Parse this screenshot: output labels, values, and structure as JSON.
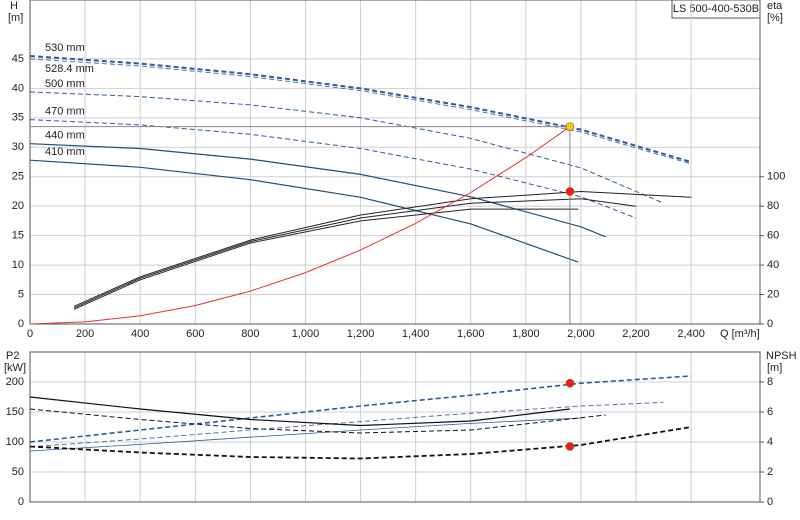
{
  "chart_data": [
    {
      "type": "line",
      "title": "LS 500-400-530B",
      "x_label": "Q [m³/h]",
      "y_label": "H",
      "y_unit": "[m]",
      "y2_label": "eta",
      "y2_unit": "[%]",
      "xlim": [
        0,
        2650
      ],
      "xticks": [
        0,
        200,
        400,
        600,
        800,
        {
          "value": 1000,
          "label": "1,000"
        },
        {
          "value": 1200,
          "label": "1,200"
        },
        {
          "value": 1400,
          "label": "1,400"
        },
        {
          "value": 1600,
          "label": "1,600"
        },
        {
          "value": 1800,
          "label": "1,800"
        },
        {
          "value": 2000,
          "label": "2,000"
        },
        {
          "value": 2200,
          "label": "2,200"
        },
        {
          "value": 2400,
          "label": "2,400"
        }
      ],
      "ylim": [
        0,
        55
      ],
      "yticks": [
        0,
        5,
        10,
        15,
        20,
        25,
        30,
        35,
        40,
        45
      ],
      "y2lim": [
        0,
        220
      ],
      "y2ticks": [
        0,
        20,
        40,
        60,
        80,
        100
      ],
      "grid": true,
      "series": [
        {
          "name": "530 mm",
          "color": "#2b5c98",
          "dash": "dashed",
          "width": 2,
          "x": [
            0,
            400,
            800,
            1200,
            1600,
            2000,
            2400
          ],
          "values": [
            45.5,
            44.2,
            42.4,
            40,
            36.8,
            33,
            27.5
          ]
        },
        {
          "name": "528.4 mm",
          "color": "#4a78b0",
          "dash": "dashed",
          "width": 1,
          "x": [
            0,
            400,
            800,
            1200,
            1600,
            2000,
            2400
          ],
          "values": [
            45,
            43.8,
            42,
            39.6,
            36.4,
            32.6,
            27.2
          ]
        },
        {
          "name": "500 mm",
          "color": "#2b5c98",
          "dash": "dashed",
          "width": 1,
          "x": [
            0,
            400,
            800,
            1200,
            1600,
            2000,
            2300
          ],
          "values": [
            39.4,
            38.6,
            37.2,
            35,
            31.5,
            26.5,
            20.5
          ]
        },
        {
          "name": "470 mm",
          "color": "#2b5c98",
          "dash": "dashed",
          "width": 1,
          "x": [
            0,
            400,
            800,
            1200,
            1600,
            2000,
            2200
          ],
          "values": [
            34.7,
            33.8,
            32.2,
            29.8,
            26.3,
            21.6,
            18
          ]
        },
        {
          "name": "440 mm",
          "color": "#1f4e79",
          "dash": "solid",
          "width": 1.2,
          "x": [
            0,
            400,
            800,
            1200,
            1600,
            2000,
            2090
          ],
          "values": [
            30.6,
            29.8,
            28,
            25.4,
            21.6,
            16.5,
            14.8
          ]
        },
        {
          "name": "410 mm",
          "color": "#1f4e79",
          "dash": "solid",
          "width": 1.2,
          "x": [
            0,
            400,
            800,
            1200,
            1600,
            1990
          ],
          "values": [
            27.8,
            26.6,
            24.5,
            21.5,
            17,
            10.5
          ]
        },
        {
          "axis": "y2",
          "color": "#222222",
          "dash": "solid",
          "width": 1,
          "x": [
            160,
            400,
            800,
            1200,
            1600,
            2000,
            2400
          ],
          "values": [
            12,
            32,
            57,
            74,
            85,
            90,
            86
          ]
        },
        {
          "axis": "y2",
          "color": "#222222",
          "dash": "solid",
          "width": 1,
          "x": [
            160,
            400,
            800,
            1200,
            1600,
            2000,
            2200
          ],
          "values": [
            11,
            31,
            56,
            72,
            82,
            85,
            80
          ]
        },
        {
          "axis": "y2",
          "color": "#222222",
          "dash": "solid",
          "width": 1,
          "x": [
            160,
            400,
            800,
            1200,
            1600,
            1990
          ],
          "values": [
            10,
            30,
            55,
            70,
            78,
            78
          ]
        },
        {
          "color": "#e83030",
          "dash": "solid",
          "width": 1,
          "x": [
            0,
            200,
            400,
            600,
            800,
            1000,
            1200,
            1400,
            1600,
            1800,
            1960
          ],
          "values": [
            0,
            0.35,
            1.39,
            3.14,
            5.58,
            8.72,
            12.56,
            17.09,
            22.32,
            28.25,
            33.5
          ]
        },
        {
          "color": "#f5c518",
          "marker": true,
          "crosshair": true,
          "x": [
            1960
          ],
          "values": [
            33.5
          ]
        },
        {
          "axis": "y2",
          "color": "#e82020",
          "marker": true,
          "x": [
            1960
          ],
          "values": [
            90
          ]
        }
      ]
    },
    {
      "type": "line",
      "y_label": "P2",
      "y_unit": "[kW]",
      "y2_label": "NPSH",
      "y2_unit": "[m]",
      "xlim": [
        0,
        2650
      ],
      "x_gridlines": [
        0,
        200,
        400,
        600,
        800,
        1000,
        1200,
        1400,
        1600,
        1800,
        2000,
        2200,
        2400
      ],
      "ylim": [
        0,
        250
      ],
      "yticks": [
        0,
        50,
        100,
        150,
        200
      ],
      "y2lim": [
        0,
        10
      ],
      "y2ticks": [
        0,
        2,
        4,
        6,
        8
      ],
      "grid": true,
      "series": [
        {
          "color": "#2b5c98",
          "dash": "dashed",
          "width": 1.6,
          "x": [
            0,
            400,
            800,
            1200,
            1600,
            2000,
            2400
          ],
          "values": [
            100,
            120,
            140,
            160,
            178,
            198,
            210
          ]
        },
        {
          "color": "#4a78b0",
          "dash": "dashed",
          "width": 1,
          "x": [
            0,
            400,
            800,
            1200,
            1600,
            2000,
            2300
          ],
          "values": [
            92,
            105,
            120,
            134,
            148,
            160,
            166
          ]
        },
        {
          "color": "#2b5c98",
          "dash": "solid",
          "width": 0.8,
          "x": [
            0,
            400,
            800,
            1200,
            1600,
            2000
          ],
          "values": [
            85,
            96,
            108,
            120,
            131,
            140
          ]
        },
        {
          "axis": "y2",
          "color": "#111111",
          "dash": "solid",
          "width": 1.2,
          "x": [
            0,
            400,
            800,
            1200,
            1600,
            1960
          ],
          "values": [
            7,
            6.2,
            5.5,
            5.1,
            5.4,
            6.2
          ]
        },
        {
          "axis": "y2",
          "color": "#111111",
          "dash": "dashed",
          "width": 1,
          "x": [
            0,
            400,
            800,
            1200,
            1600,
            2090
          ],
          "values": [
            6.2,
            5.5,
            4.9,
            4.6,
            4.8,
            5.8
          ]
        },
        {
          "axis": "y2",
          "color": "#111111",
          "dash": "dashed",
          "width": 1.8,
          "x": [
            0,
            400,
            800,
            1200,
            1600,
            2000,
            2400
          ],
          "values": [
            3.7,
            3.3,
            3,
            2.9,
            3.2,
            3.8,
            5
          ]
        },
        {
          "color": "#e82020",
          "marker": true,
          "x": [
            1960
          ],
          "values": [
            198
          ]
        },
        {
          "axis": "y2",
          "color": "#e82020",
          "marker": true,
          "x": [
            1960
          ],
          "values": [
            3.7
          ]
        }
      ]
    }
  ]
}
